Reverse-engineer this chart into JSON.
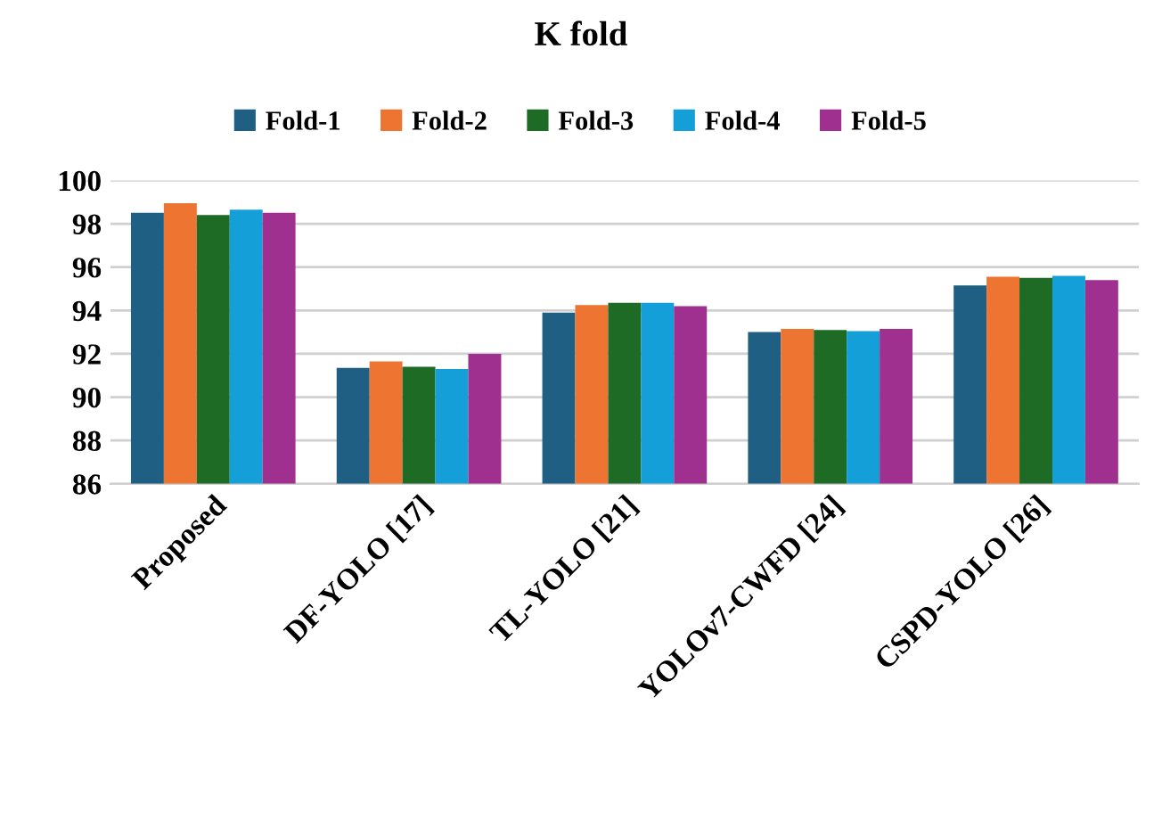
{
  "chart_data": {
    "type": "bar",
    "title": "K fold",
    "categories": [
      "Proposed",
      "DF-YOLO [17]",
      "TL-YOLO [21]",
      "YOLOv7-CWFD [24]",
      "CSPD-YOLO [26]"
    ],
    "series": [
      {
        "name": "Fold-1",
        "color": "#1f5f84",
        "values": [
          98.5,
          91.35,
          93.9,
          93.0,
          95.15
        ]
      },
      {
        "name": "Fold-2",
        "color": "#ed7431",
        "values": [
          98.95,
          91.65,
          94.25,
          93.15,
          95.55
        ]
      },
      {
        "name": "Fold-3",
        "color": "#1d6b25",
        "values": [
          98.4,
          91.4,
          94.35,
          93.1,
          95.5
        ]
      },
      {
        "name": "Fold-4",
        "color": "#149fd8",
        "values": [
          98.65,
          91.3,
          94.35,
          93.05,
          95.6
        ]
      },
      {
        "name": "Fold-5",
        "color": "#a0308f",
        "values": [
          98.5,
          92.0,
          94.2,
          93.15,
          95.4
        ]
      }
    ],
    "ylim": [
      86,
      100
    ],
    "yticks": [
      86,
      88,
      90,
      92,
      94,
      96,
      98,
      100
    ],
    "grid": "y",
    "legend": "top"
  }
}
